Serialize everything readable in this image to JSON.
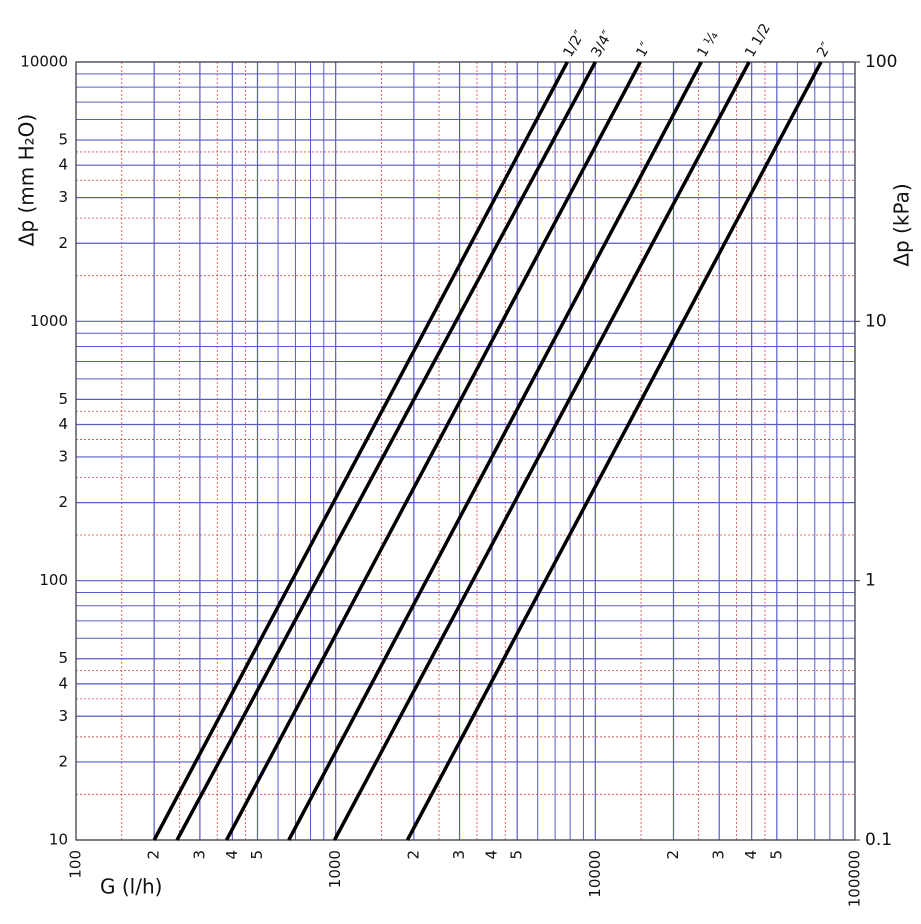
{
  "chart_data": {
    "type": "line",
    "xlabel": "G (l/h)",
    "ylabel": "Δp (mm H₂O)",
    "y2label": "Δp (kPa)",
    "xscale": "log",
    "yscale": "log",
    "xlim": [
      100,
      100000
    ],
    "ylim": [
      10,
      10000
    ],
    "y2lim": [
      0.1,
      100
    ],
    "xticks": [
      100,
      {
        "value": 200,
        "label": "2"
      },
      {
        "value": 300,
        "label": "3"
      },
      {
        "value": 400,
        "label": "4"
      },
      {
        "value": 500,
        "label": "5"
      },
      1000,
      {
        "value": 2000,
        "label": "2"
      },
      {
        "value": 3000,
        "label": "3"
      },
      {
        "value": 4000,
        "label": "4"
      },
      {
        "value": 5000,
        "label": "5"
      },
      10000,
      {
        "value": 20000,
        "label": "2"
      },
      {
        "value": 30000,
        "label": "3"
      },
      {
        "value": 40000,
        "label": "4"
      },
      {
        "value": 50000,
        "label": "5"
      },
      100000
    ],
    "yticks": [
      10,
      {
        "value": 20,
        "label": "2"
      },
      {
        "value": 30,
        "label": "3"
      },
      {
        "value": 40,
        "label": "4"
      },
      {
        "value": 50,
        "label": "5"
      },
      100,
      {
        "value": 200,
        "label": "2"
      },
      {
        "value": 300,
        "label": "3"
      },
      {
        "value": 400,
        "label": "4"
      },
      {
        "value": 500,
        "label": "5"
      },
      1000,
      {
        "value": 2000,
        "label": "2"
      },
      {
        "value": 3000,
        "label": "3"
      },
      {
        "value": 4000,
        "label": "4"
      },
      {
        "value": 5000,
        "label": "5"
      },
      10000
    ],
    "y2ticks": [
      0.1,
      1,
      10,
      100
    ],
    "x_minor_grid": [
      600,
      700,
      800,
      900,
      6000,
      7000,
      8000,
      9000,
      60000,
      70000,
      80000,
      90000
    ],
    "y_minor_grid": [
      60,
      70,
      80,
      90,
      600,
      700,
      800,
      900,
      6000,
      7000,
      8000,
      9000
    ],
    "x_fine_grid": [
      150,
      250,
      350,
      450,
      1500,
      2500,
      3500,
      4500,
      15000,
      25000,
      35000,
      45000
    ],
    "y_fine_grid": [
      15,
      25,
      35,
      45,
      150,
      250,
      350,
      450,
      1500,
      2500,
      3500,
      4500
    ],
    "grid": true,
    "grid_color": "#5a5ac8",
    "fine_grid_color": "#d04848",
    "series": [
      {
        "name": "1/2″",
        "color": "#000000",
        "x": [
          200,
          7800
        ],
        "values": [
          10,
          10000
        ]
      },
      {
        "name": "3/4″",
        "color": "#000000",
        "x": [
          245,
          10000
        ],
        "values": [
          10,
          10000
        ]
      },
      {
        "name": "1″",
        "color": "#000000",
        "x": [
          380,
          14900
        ],
        "values": [
          10,
          10000
        ]
      },
      {
        "name": "1 ¼",
        "color": "#000000",
        "x": [
          660,
          25600
        ],
        "values": [
          10,
          10000
        ]
      },
      {
        "name": "1 1/2",
        "color": "#000000",
        "x": [
          990,
          39100
        ],
        "values": [
          10,
          10000
        ]
      },
      {
        "name": "2″",
        "color": "#000000",
        "x": [
          1890,
          74000
        ],
        "values": [
          10,
          10000
        ]
      }
    ]
  }
}
